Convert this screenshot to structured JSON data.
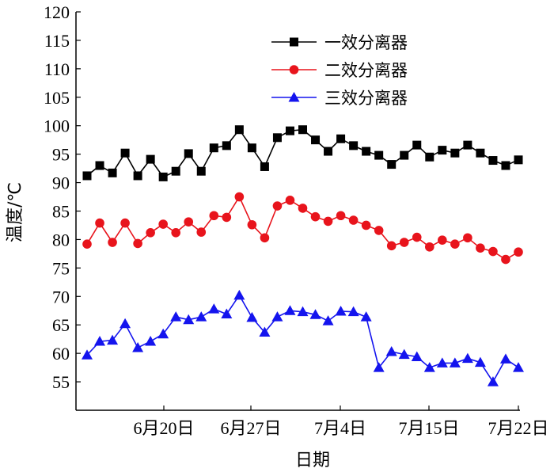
{
  "chart_data": {
    "type": "line",
    "title": "",
    "xlabel": "日期",
    "ylabel": "温度/℃",
    "ylim": [
      50,
      120
    ],
    "yticks": [
      55,
      60,
      65,
      70,
      75,
      80,
      85,
      90,
      95,
      100,
      105,
      110,
      115,
      120
    ],
    "xticks": [
      "6月20日",
      "6月27日",
      "7月4日",
      "7月15日",
      "7月22日"
    ],
    "grid": false,
    "legend_position": "top-right",
    "series": [
      {
        "name": "一效分离器",
        "color": "#000000",
        "marker": "square",
        "values": [
          91.2,
          93.0,
          91.7,
          95.2,
          91.2,
          94.1,
          91.0,
          92.0,
          95.1,
          92.0,
          96.1,
          96.5,
          99.3,
          96.1,
          92.8,
          97.9,
          99.1,
          99.3,
          97.5,
          95.5,
          97.7,
          96.5,
          95.5,
          94.8,
          93.2,
          94.8,
          96.6,
          94.5,
          95.7,
          95.2,
          96.6,
          95.2,
          93.9,
          93.0,
          94.0
        ]
      },
      {
        "name": "二效分离器",
        "color": "#e8141c",
        "marker": "circle",
        "values": [
          79.2,
          82.9,
          79.5,
          82.9,
          79.3,
          81.2,
          82.7,
          81.2,
          83.1,
          81.3,
          84.2,
          83.9,
          87.5,
          82.6,
          80.3,
          85.9,
          86.9,
          85.5,
          84.0,
          83.2,
          84.2,
          83.4,
          82.5,
          81.6,
          78.9,
          79.5,
          80.4,
          78.7,
          79.9,
          79.2,
          80.3,
          78.5,
          77.9,
          76.5,
          77.8
        ]
      },
      {
        "name": "三效分离器",
        "color": "#1414ee",
        "marker": "triangle",
        "values": [
          59.7,
          62.1,
          62.3,
          65.2,
          61.0,
          62.1,
          63.4,
          66.4,
          65.9,
          66.4,
          67.8,
          66.9,
          70.2,
          66.3,
          63.7,
          66.4,
          67.5,
          67.3,
          66.8,
          65.7,
          67.4,
          67.3,
          66.4,
          57.5,
          60.3,
          59.8,
          59.4,
          57.5,
          58.3,
          58.3,
          59.1,
          58.4,
          55.0,
          59.0,
          57.5
        ]
      }
    ]
  }
}
